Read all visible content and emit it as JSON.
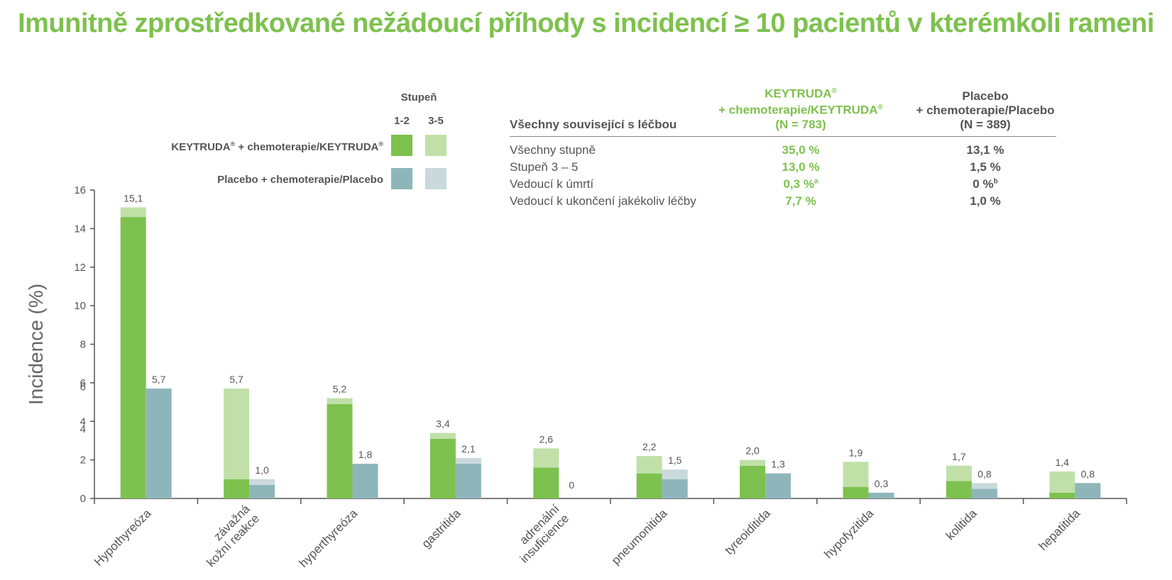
{
  "title": "Imunitně zprostředkované nežádoucí příhody s incidencí ≥ 10 pacientů v kterémkoli rameni",
  "colors": {
    "title": "#7dc14e",
    "keytruda_12": "#7dc14e",
    "keytruda_35": "#c0e0a8",
    "placebo_12": "#8eb6ba",
    "placebo_35": "#c9d9dc",
    "text": "#555555"
  },
  "legend": {
    "header": "Stupeň",
    "grade_low": "1-2",
    "grade_high": "3-5",
    "keytruda": "KEYTRUDA",
    "keytruda_rest": " + chemoterapie/KEYTRUDA",
    "mark": "®",
    "placebo": "Placebo + chemoterapie/Placebo"
  },
  "summary": {
    "section_label": "Všechny související s léčbou",
    "col_a_line1": "KEYTRUDA",
    "col_a_line2": "+ chemoterapie/KEYTRUDA",
    "col_a_n": "(N = 783)",
    "col_b_line1": "Placebo",
    "col_b_line2": "+ chemoterapie/Placebo",
    "col_b_n": "(N = 389)",
    "mark": "®",
    "rows": [
      {
        "label": "Všechny stupně",
        "a": "35,0 %",
        "a_sup": "",
        "b": "13,1 %",
        "b_sup": ""
      },
      {
        "label": "Stupeň 3 – 5",
        "a": "13,0 %",
        "a_sup": "",
        "b": "1,5 %",
        "b_sup": ""
      },
      {
        "label": "Vedoucí k úmrtí",
        "a": "0,3 %",
        "a_sup": "a",
        "b": "0 %",
        "b_sup": "b"
      },
      {
        "label": "Vedoucí k ukončení jakékoliv léčby",
        "a": "7,7 %",
        "a_sup": "",
        "b": "1,0 %",
        "b_sup": ""
      }
    ]
  },
  "chart_data": {
    "type": "bar",
    "stacked": true,
    "ylabel": "Incidence (%)",
    "ylim": [
      0,
      16
    ],
    "yticks": [
      0,
      2,
      4,
      6,
      8,
      10,
      12,
      14,
      16
    ],
    "extra_tick_labels": [
      "6",
      "4"
    ],
    "categories": [
      [
        "Hypothyreóza"
      ],
      [
        "závažná",
        "kožní reakce"
      ],
      [
        "hyperthyreóza"
      ],
      [
        "gastritida"
      ],
      [
        "adrenální",
        "insuficience"
      ],
      [
        "pneumonitida"
      ],
      [
        "tyreoiditida"
      ],
      [
        "hypofyzitida"
      ],
      [
        "kolitida"
      ],
      [
        "hepatitida"
      ]
    ],
    "series": [
      {
        "name": "KEYTRUDA® + chemoterapie/KEYTRUDA®",
        "total_labels": [
          "15,1",
          "5,7",
          "5,2",
          "3,4",
          "2,6",
          "2,2",
          "2,0",
          "1,9",
          "1,7",
          "1,4"
        ],
        "grade_1_2": [
          14.6,
          1.0,
          4.9,
          3.1,
          1.6,
          1.3,
          1.7,
          0.6,
          0.9,
          0.3
        ],
        "grade_3_5": [
          0.5,
          4.7,
          0.3,
          0.3,
          1.0,
          0.9,
          0.3,
          1.3,
          0.8,
          1.1
        ]
      },
      {
        "name": "Placebo + chemoterapie/Placebo",
        "total_labels": [
          "5,7",
          "1,0",
          "1,8",
          "2,1",
          "0",
          "1,5",
          "1,3",
          "0,3",
          "0,8",
          "0,8"
        ],
        "grade_1_2": [
          5.7,
          0.7,
          1.8,
          1.8,
          0.0,
          1.0,
          1.3,
          0.3,
          0.5,
          0.8
        ],
        "grade_3_5": [
          0.0,
          0.3,
          0.0,
          0.3,
          0.0,
          0.5,
          0.0,
          0.0,
          0.3,
          0.0
        ]
      }
    ]
  }
}
